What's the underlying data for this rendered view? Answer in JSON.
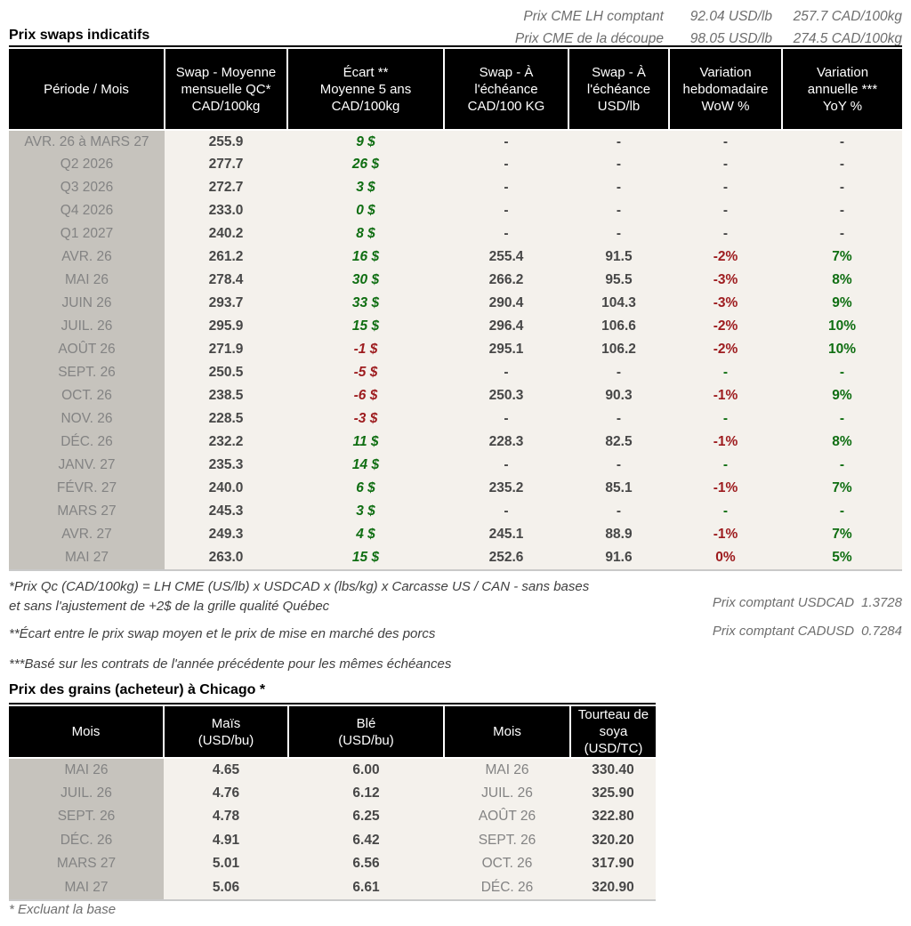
{
  "palette": {
    "green": "#0f6e12",
    "red": "#9d1b1e",
    "value_gray": "#474747",
    "month_gray": "#838383",
    "column_gray": "#c6c3bd",
    "table_beige": "#f4f1ec",
    "header_black": "#000000",
    "muted_italic": "#6e6e6e",
    "footnote_gray": "#3f3f3f",
    "bottom_border": "#c9c9c9"
  },
  "top_right": {
    "lines": [
      {
        "label": "Prix CME LH comptant",
        "usd": "92.04 USD/lb",
        "cad": "257.7 CAD/100kg"
      },
      {
        "label": "Prix CME de la découpe",
        "usd": "98.05 USD/lb",
        "cad": "274.5 CAD/100kg"
      }
    ]
  },
  "swaps": {
    "title": "Prix swaps indicatifs",
    "headers": [
      "Période / Mois",
      "Swap - Moyenne\nmensuelle QC*\nCAD/100kg",
      "Écart **\nMoyenne 5 ans\nCAD/100kg",
      "Swap - À\nl'échéance\nCAD/100 KG",
      "Swap - À\nl'échéance\nUSD/lb",
      "Variation\nhebdomadaire\nWoW %",
      "Variation\nannuelle ***\nYoY %"
    ],
    "rows": [
      {
        "period": "AVR. 26 à MARS 27",
        "avg": "255.9",
        "ecart": "9 $",
        "ec": "green",
        "cad": "-",
        "usd": "-",
        "wow": "-",
        "wc": "dark",
        "yoy": "-",
        "yc": "dark"
      },
      {
        "period": "Q2 2026",
        "avg": "277.7",
        "ecart": "26 $",
        "ec": "green",
        "cad": "-",
        "usd": "-",
        "wow": "-",
        "wc": "dark",
        "yoy": "-",
        "yc": "dark"
      },
      {
        "period": "Q3 2026",
        "avg": "272.7",
        "ecart": "3 $",
        "ec": "green",
        "cad": "-",
        "usd": "-",
        "wow": "-",
        "wc": "dark",
        "yoy": "-",
        "yc": "dark"
      },
      {
        "period": "Q4 2026",
        "avg": "233.0",
        "ecart": "0 $",
        "ec": "green",
        "cad": "-",
        "usd": "-",
        "wow": "-",
        "wc": "dark",
        "yoy": "-",
        "yc": "dark"
      },
      {
        "period": "Q1 2027",
        "avg": "240.2",
        "ecart": "8 $",
        "ec": "green",
        "cad": "-",
        "usd": "-",
        "wow": "-",
        "wc": "dark",
        "yoy": "-",
        "yc": "dark"
      },
      {
        "period": "AVR. 26",
        "avg": "261.2",
        "ecart": "16 $",
        "ec": "green",
        "cad": "255.4",
        "usd": "91.5",
        "wow": "-2%",
        "wc": "red",
        "yoy": "7%",
        "yc": "green"
      },
      {
        "period": "MAI 26",
        "avg": "278.4",
        "ecart": "30 $",
        "ec": "green",
        "cad": "266.2",
        "usd": "95.5",
        "wow": "-3%",
        "wc": "red",
        "yoy": "8%",
        "yc": "green"
      },
      {
        "period": "JUIN 26",
        "avg": "293.7",
        "ecart": "33 $",
        "ec": "green",
        "cad": "290.4",
        "usd": "104.3",
        "wow": "-3%",
        "wc": "red",
        "yoy": "9%",
        "yc": "green"
      },
      {
        "period": "JUIL. 26",
        "avg": "295.9",
        "ecart": "15 $",
        "ec": "green",
        "cad": "296.4",
        "usd": "106.6",
        "wow": "-2%",
        "wc": "red",
        "yoy": "10%",
        "yc": "green"
      },
      {
        "period": "AOÛT 26",
        "avg": "271.9",
        "ecart": "-1 $",
        "ec": "red",
        "cad": "295.1",
        "usd": "106.2",
        "wow": "-2%",
        "wc": "red",
        "yoy": "10%",
        "yc": "green"
      },
      {
        "period": "SEPT. 26",
        "avg": "250.5",
        "ecart": "-5 $",
        "ec": "red",
        "cad": "-",
        "usd": "-",
        "wow": "-",
        "wc": "green",
        "yoy": "-",
        "yc": "green"
      },
      {
        "period": "OCT. 26",
        "avg": "238.5",
        "ecart": "-6 $",
        "ec": "red",
        "cad": "250.3",
        "usd": "90.3",
        "wow": "-1%",
        "wc": "red",
        "yoy": "9%",
        "yc": "green"
      },
      {
        "period": "NOV. 26",
        "avg": "228.5",
        "ecart": "-3 $",
        "ec": "red",
        "cad": "-",
        "usd": "-",
        "wow": "-",
        "wc": "green",
        "yoy": "-",
        "yc": "green"
      },
      {
        "period": "DÉC. 26",
        "avg": "232.2",
        "ecart": "11 $",
        "ec": "green",
        "cad": "228.3",
        "usd": "82.5",
        "wow": "-1%",
        "wc": "red",
        "yoy": "8%",
        "yc": "green"
      },
      {
        "period": "JANV. 27",
        "avg": "235.3",
        "ecart": "14 $",
        "ec": "green",
        "cad": "-",
        "usd": "-",
        "wow": "-",
        "wc": "green",
        "yoy": "-",
        "yc": "green"
      },
      {
        "period": "FÉVR. 27",
        "avg": "240.0",
        "ecart": "6 $",
        "ec": "green",
        "cad": "235.2",
        "usd": "85.1",
        "wow": "-1%",
        "wc": "red",
        "yoy": "7%",
        "yc": "green"
      },
      {
        "period": "MARS 27",
        "avg": "245.3",
        "ecart": "3 $",
        "ec": "green",
        "cad": "-",
        "usd": "-",
        "wow": "-",
        "wc": "green",
        "yoy": "-",
        "yc": "green"
      },
      {
        "period": "AVR. 27",
        "avg": "249.3",
        "ecart": "4 $",
        "ec": "green",
        "cad": "245.1",
        "usd": "88.9",
        "wow": "-1%",
        "wc": "red",
        "yoy": "7%",
        "yc": "green"
      },
      {
        "period": "MAI 27",
        "avg": "263.0",
        "ecart": "15 $",
        "ec": "green",
        "cad": "252.6",
        "usd": "91.6",
        "wow": "0%",
        "wc": "red",
        "yoy": "5%",
        "yc": "green"
      }
    ],
    "footnotes": [
      "*Prix Qc (CAD/100kg) = LH CME (US/lb) x USDCAD x (lbs/kg) x Carcasse US / CAN - sans bases et sans l'ajustement de +2$ de la grille qualité Québec",
      "**Écart entre le prix swap moyen et le prix de mise en marché des porcs",
      "***Basé sur les contrats de l'année précédente pour les mêmes échéances"
    ],
    "spot_rates": [
      {
        "label": "Prix comptant USDCAD",
        "value": "1.3728"
      },
      {
        "label": "Prix comptant CADUSD",
        "value": "0.7284"
      }
    ]
  },
  "grains": {
    "title": "Prix des grains (acheteur) à Chicago *",
    "headers": [
      "Mois",
      "Maïs\n(USD/bu)",
      "Blé\n(USD/bu)",
      "Mois",
      "Tourteau de\nsoya\n(USD/TC)"
    ],
    "rows": [
      {
        "mois1": "MAI 26",
        "mais": "4.65",
        "ble": "6.00",
        "mois2": "MAI 26",
        "tourteau": "330.40"
      },
      {
        "mois1": "JUIL. 26",
        "mais": "4.76",
        "ble": "6.12",
        "mois2": "JUIL. 26",
        "tourteau": "325.90"
      },
      {
        "mois1": "SEPT. 26",
        "mais": "4.78",
        "ble": "6.25",
        "mois2": "AOÛT 26",
        "tourteau": "322.80"
      },
      {
        "mois1": "DÉC. 26",
        "mais": "4.91",
        "ble": "6.42",
        "mois2": "SEPT. 26",
        "tourteau": "320.20"
      },
      {
        "mois1": "MARS 27",
        "mais": "5.01",
        "ble": "6.56",
        "mois2": "OCT. 26",
        "tourteau": "317.90"
      },
      {
        "mois1": "MAI 27",
        "mais": "5.06",
        "ble": "6.61",
        "mois2": "DÉC. 26",
        "tourteau": "320.90"
      }
    ],
    "footnote": "* Excluant la base"
  }
}
